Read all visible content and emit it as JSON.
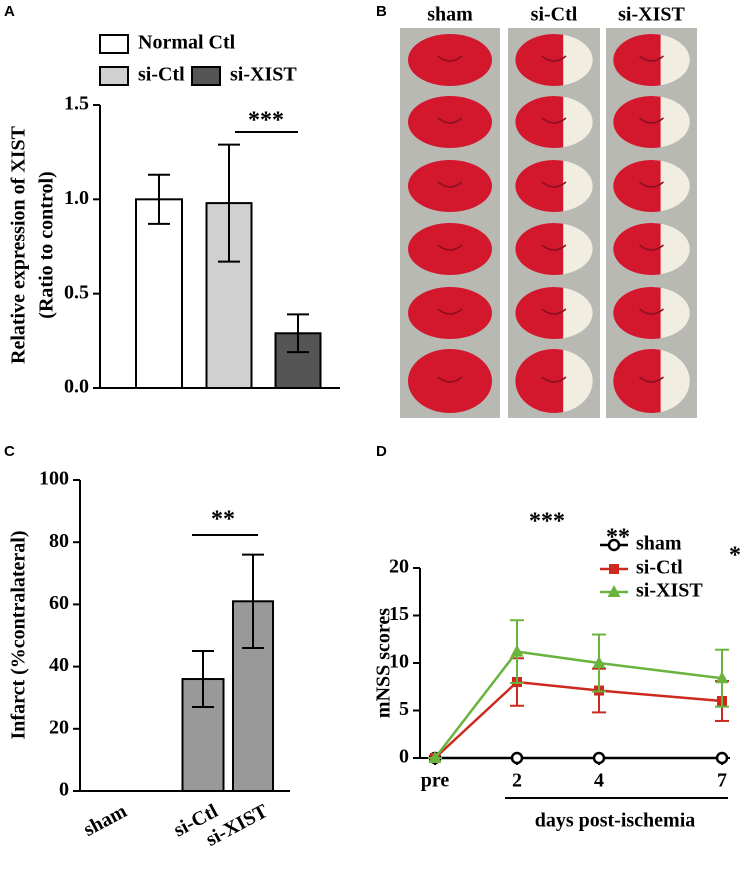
{
  "panels": [
    "A",
    "B",
    "C",
    "D"
  ],
  "image_panel": {
    "columns": [
      "sham",
      "si-Ctl",
      "si-XIST"
    ]
  },
  "chart_data": [
    {
      "type": "bar",
      "ylabel": [
        "Relative expression of XIST",
        "(Ratio to control)"
      ],
      "series": [
        {
          "name": "Normal Ctl",
          "color": "#ffffff",
          "values": [
            1.0
          ],
          "errors": [
            0.13
          ]
        },
        {
          "name": "si-Ctl",
          "color": "#d0d0d0",
          "values": [
            0.98
          ],
          "errors": [
            0.31
          ]
        },
        {
          "name": "si-XIST",
          "color": "#555555",
          "values": [
            0.29
          ],
          "errors": [
            0.1
          ]
        }
      ],
      "ylim": [
        0,
        1.5
      ],
      "yticks": [
        {
          "value": 0,
          "label": "0.0"
        },
        {
          "value": 0.5,
          "label": "0.5"
        },
        {
          "value": 1,
          "label": "1.0"
        },
        1.5
      ],
      "annotations": [
        "***"
      ]
    },
    {
      "type": "bar",
      "ylabel": "Infarct (%contralateral)",
      "categories": [
        "sham",
        "si-Ctl",
        "si-XIST"
      ],
      "values": [
        0,
        36,
        61
      ],
      "errors": [
        0,
        9,
        15
      ],
      "color": "#999999",
      "ylim": [
        0,
        100
      ],
      "yticks": [
        0,
        20,
        40,
        60,
        80,
        100
      ],
      "annotations": [
        "**"
      ]
    },
    {
      "type": "line",
      "ylabel": "mNSS scores",
      "xlabel": "days post-ischemia",
      "x": [
        0,
        2,
        4,
        7
      ],
      "xlim": [
        0,
        7
      ],
      "xticks": [
        {
          "value": 0,
          "label": "pre"
        },
        2,
        4,
        7
      ],
      "ylim": [
        0,
        20
      ],
      "yticks": [
        0,
        5,
        10,
        15,
        20
      ],
      "series": [
        {
          "name": "sham",
          "color": "#000000",
          "marker": "circle",
          "values": [
            0,
            0,
            0,
            0
          ]
        },
        {
          "name": "si-Ctl",
          "color": "#cc2a1e",
          "marker": "square",
          "values": [
            0,
            8,
            7.1,
            6
          ],
          "errors": [
            0,
            2.5,
            2.3,
            2.1
          ]
        },
        {
          "name": "si-XIST",
          "color": "#6ab43e",
          "marker": "triangle",
          "values": [
            0,
            11.2,
            10,
            8.4
          ],
          "errors": [
            0,
            3.3,
            3,
            3
          ]
        }
      ],
      "annotations": [
        "***",
        "**",
        "*"
      ]
    }
  ]
}
